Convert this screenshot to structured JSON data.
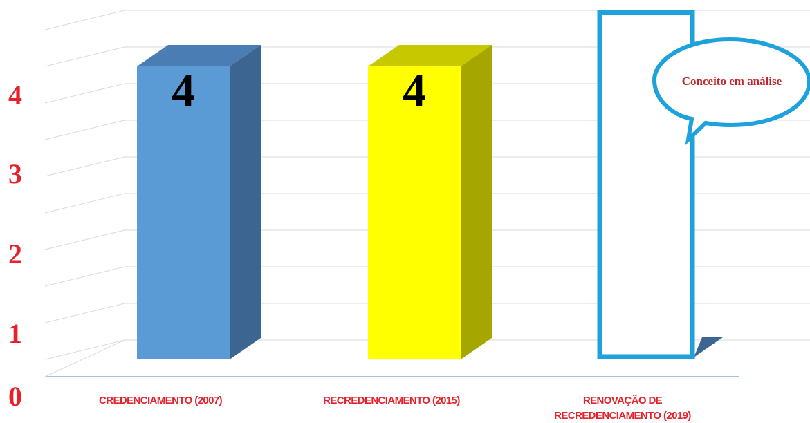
{
  "chart_data": {
    "type": "bar",
    "categories": [
      "CREDENCIAMENTO (2007)",
      "RECREDENCIAMENTO (2015)",
      "RENOVAÇÃO DE RECREDENCIAMENTO (2019)"
    ],
    "category_lines": [
      [
        "CREDENCIAMENTO (2007)"
      ],
      [
        "RECREDENCIAMENTO (2015)"
      ],
      [
        "RENOVAÇÃO DE",
        "RECREDENCIAMENTO (2019)"
      ]
    ],
    "values": [
      4,
      4,
      null
    ],
    "data_labels": [
      "4",
      "4",
      ""
    ],
    "bar_colors": [
      "#5b9bd5",
      "#ffff00",
      "#ffffff"
    ],
    "bar_side_colors": [
      "#3d6591",
      "#a5a600",
      "#ffffff"
    ],
    "bar_top_colors": [
      "#4a7db3",
      "#c8c800",
      "#ffffff"
    ],
    "third_bar_outline_color": "#1ea2dc",
    "annotation": "Conceito em análise",
    "annotation_color": "#c0272d",
    "yticks": [
      "0",
      "1",
      "2",
      "3",
      "4"
    ],
    "tick_color": "#e8202a",
    "xlabel_color": "#e8202a",
    "ylim": [
      0,
      4
    ],
    "grid": true,
    "style": "3d-column"
  }
}
